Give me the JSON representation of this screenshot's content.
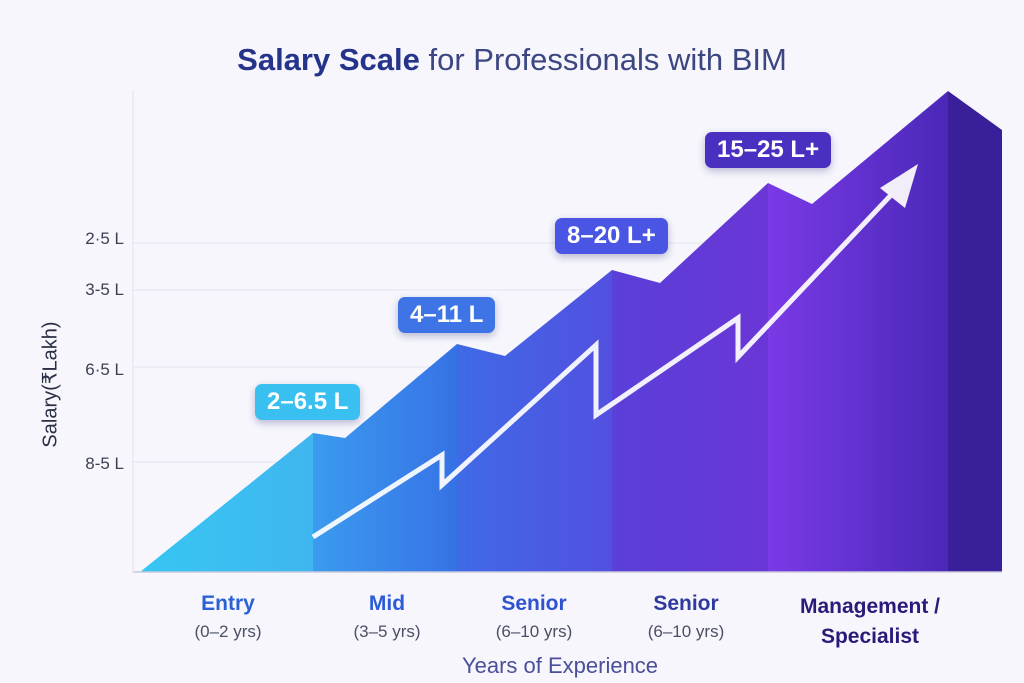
{
  "chart_data": {
    "type": "area",
    "title_bold": "Salary Scale",
    "title_rest": "for Professionals with BIM",
    "xlabel": "Years of Experience",
    "ylabel": "Salary (Lakh)",
    "ylabel_as_printed": "Salary(₹Lakh)",
    "yticks": [
      "2·5 L",
      "3-5 L",
      "6·5 L",
      "8-5 L"
    ],
    "categories": [
      {
        "name": "Entry",
        "sub": "(0–2 yrs)",
        "range": "2–6.5 L",
        "min": 2,
        "max": 6.5,
        "color": "#3cc3f0"
      },
      {
        "name": "Mid",
        "sub": "(3–5 yrs)",
        "range": "4–11 L",
        "min": 4,
        "max": 11,
        "color": "#3a78e6"
      },
      {
        "name": "Senior",
        "sub": "(6–10 yrs)",
        "range": "8–20 L+",
        "min": 8,
        "max": 20,
        "color": "#4f4fe0"
      },
      {
        "name": "Senior",
        "sub": "(6–10 yrs)",
        "range": "15–25 L+",
        "min": 15,
        "max": 25,
        "color": "#6a34d8"
      },
      {
        "name": "Management / Specialist",
        "sub": "",
        "range": "",
        "color": "#3a1f9a"
      }
    ]
  }
}
